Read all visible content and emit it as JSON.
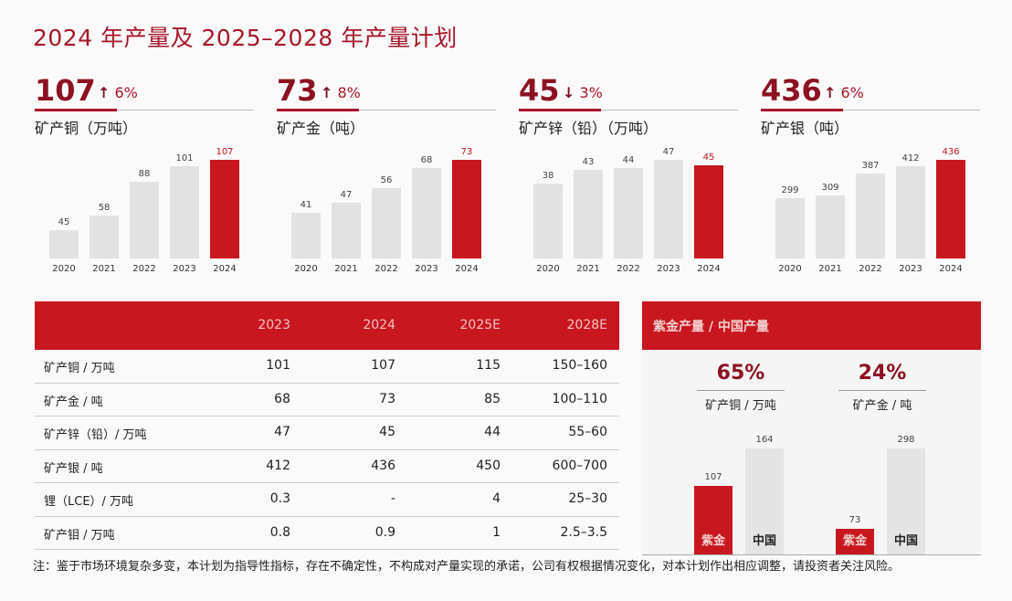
{
  "title": "2024 年产量及 2025–2028 年产量计划",
  "panels": [
    {
      "value": "107",
      "arrow": "↑",
      "change": "6%",
      "label": "矿产铜（万吨）"
    },
    {
      "value": "73",
      "arrow": "↑",
      "change": "8%",
      "label": "矿产金（吨）"
    },
    {
      "value": "45",
      "arrow": "↓",
      "change": "3%",
      "label": "矿产锌（铅）（万吨）"
    },
    {
      "value": "436",
      "arrow": "↑",
      "change": "6%",
      "label": "矿产银（吨）"
    }
  ],
  "table": {
    "headers": [
      "",
      "2023",
      "2024",
      "2025E",
      "2028E"
    ],
    "rows": [
      [
        "矿产铜 / 万吨",
        "101",
        "107",
        "115",
        "150–160"
      ],
      [
        "矿产金 / 吨",
        "68",
        "73",
        "85",
        "100–110"
      ],
      [
        "矿产锌（铅）/ 万吨",
        "47",
        "45",
        "44",
        "55–60"
      ],
      [
        "矿产银 / 吨",
        "412",
        "436",
        "450",
        "600–700"
      ],
      [
        "锂（LCE）/ 万吨",
        "0.3",
        "-",
        "4",
        "25–30"
      ],
      [
        "矿产钼 / 万吨",
        "0.8",
        "0.9",
        "1",
        "2.5–3.5"
      ]
    ]
  },
  "share_panel": {
    "title": "紫金产量 / 中国产量",
    "groups": [
      {
        "percent": "65%",
        "label": "矿产铜 / 万吨",
        "zijin": "107",
        "china": "164",
        "zijin_label": "紫金",
        "china_label": "中国"
      },
      {
        "percent": "24%",
        "label": "矿产金 / 吨",
        "zijin": "73",
        "china": "298",
        "zijin_label": "紫金",
        "china_label": "中国"
      }
    ]
  },
  "note": "注：鉴于市场环境复杂多变，本计划为指导性指标，存在不确定性，不构成对产量实现的承诺，公司有权根据情况变化，对本计划作出相应调整，请投资者关注风险。",
  "colors": {
    "accent": "#c8171f",
    "dark": "#8c1222",
    "bar": "#e2e2e2"
  },
  "chart_data": [
    {
      "type": "bar",
      "title": "矿产铜（万吨）",
      "categories": [
        "2020",
        "2021",
        "2022",
        "2023",
        "2024"
      ],
      "values": [
        45,
        58,
        88,
        101,
        107
      ]
    },
    {
      "type": "bar",
      "title": "矿产金（吨）",
      "categories": [
        "2020",
        "2021",
        "2022",
        "2023",
        "2024"
      ],
      "values": [
        41,
        47,
        56,
        68,
        73
      ]
    },
    {
      "type": "bar",
      "title": "矿产锌（铅）（万吨）",
      "categories": [
        "2020",
        "2021",
        "2022",
        "2023",
        "2024"
      ],
      "values": [
        38,
        43,
        44,
        47,
        45
      ]
    },
    {
      "type": "bar",
      "title": "矿产银（吨）",
      "categories": [
        "2020",
        "2021",
        "2022",
        "2023",
        "2024"
      ],
      "values": [
        299,
        309,
        387,
        412,
        436
      ]
    }
  ]
}
